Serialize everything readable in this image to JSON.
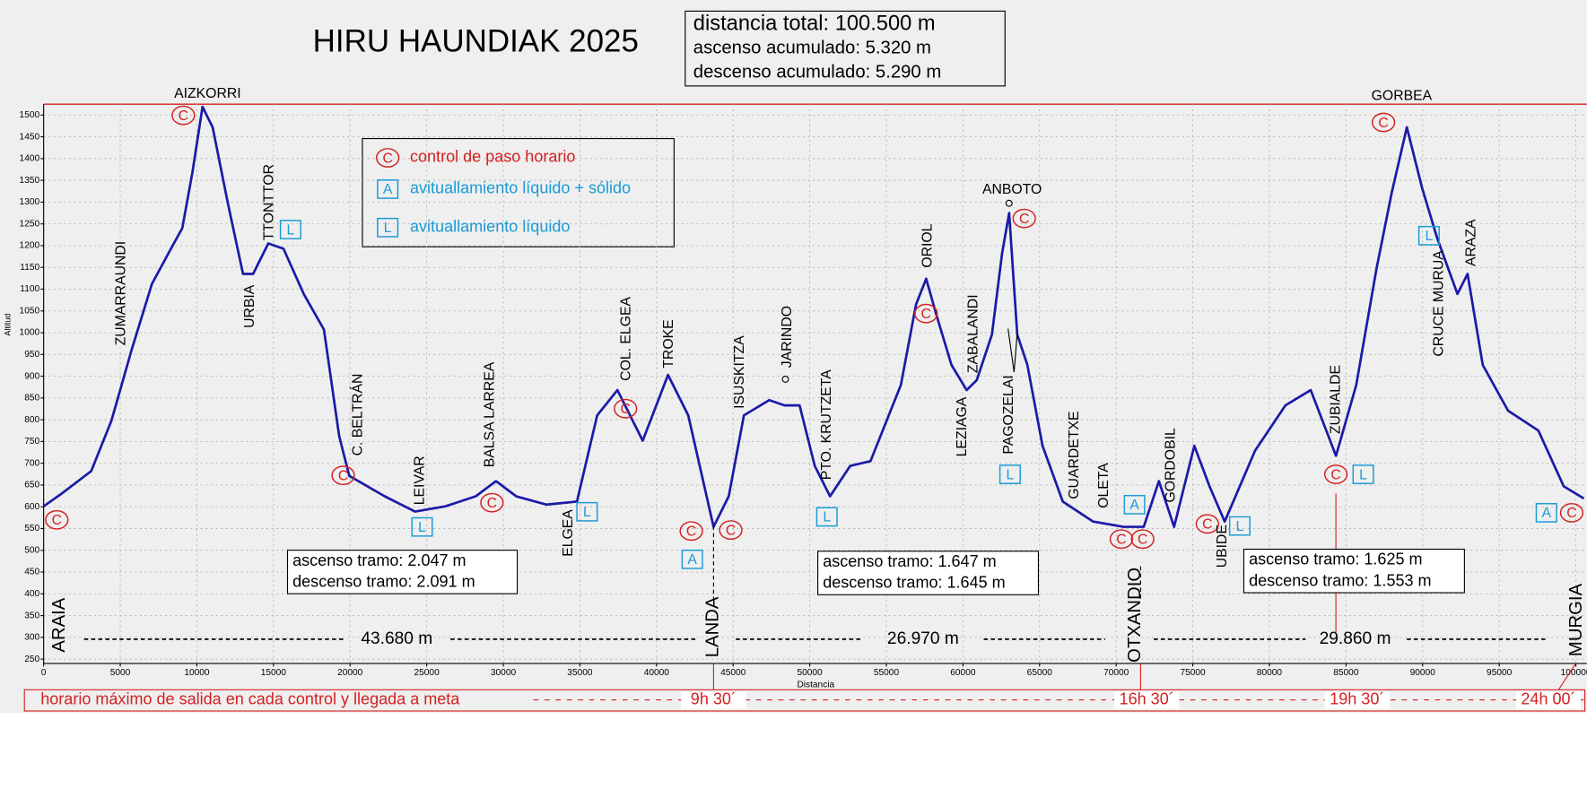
{
  "chart_data": {
    "type": "line",
    "title": "HIRU HAUNDIAK 2025",
    "xlabel": "Distancia",
    "ylabel": "Altitud",
    "x": [
      0,
      1123,
      3104,
      4425,
      5746,
      7067,
      8388,
      9049,
      9709,
      10370,
      11030,
      12021,
      13012,
      13672,
      14663,
      15654,
      16975,
      18296,
      19287,
      19947,
      22259,
      24240,
      26222,
      28203,
      29524,
      30845,
      32827,
      34808,
      36129,
      37450,
      39102,
      40753,
      42074,
      43725,
      44716,
      45707,
      47358,
      48349,
      49339,
      50330,
      51321,
      52642,
      53963,
      55945,
      56935,
      57596,
      58256,
      59247,
      60238,
      60898,
      61889,
      62550,
      63012,
      63540,
      64201,
      65192,
      66513,
      68494,
      70476,
      71797,
      72787,
      73778,
      75099,
      76090,
      77081,
      79062,
      81044,
      82695,
      84346,
      85667,
      86988,
      87979,
      88970,
      89960,
      90951,
      92272,
      92933,
      93923,
      95575,
      97556,
      99207,
      100528
    ],
    "values": [
      601,
      629,
      682,
      798,
      961,
      1112,
      1198,
      1240,
      1368,
      1519,
      1472,
      1298,
      1135,
      1135,
      1205,
      1193,
      1089,
      1007,
      763,
      671,
      624,
      589,
      601,
      624,
      659,
      624,
      605,
      612,
      810,
      868,
      752,
      903,
      810,
      554,
      624,
      810,
      845,
      833,
      833,
      694,
      624,
      694,
      705,
      880,
      1065,
      1124,
      1042,
      926,
      868,
      891,
      996,
      1182,
      1275,
      996,
      926,
      740,
      612,
      566,
      554,
      554,
      659,
      554,
      740,
      647,
      566,
      729,
      833,
      868,
      717,
      880,
      1147,
      1321,
      1472,
      1333,
      1217,
      1089,
      1135,
      926,
      821,
      775,
      647,
      619
    ],
    "color": "#1a1aa8",
    "xlim": [
      0,
      100720
    ],
    "ylim": [
      240,
      1525
    ],
    "xticks": [
      0,
      5000,
      10000,
      15000,
      20000,
      25000,
      30000,
      35000,
      40000,
      45000,
      50000,
      55000,
      60000,
      65000,
      70000,
      75000,
      80000,
      85000,
      90000,
      95000,
      100000
    ],
    "yticks": [
      250,
      300,
      350,
      400,
      450,
      500,
      550,
      600,
      650,
      700,
      750,
      800,
      850,
      900,
      950,
      1000,
      1050,
      1100,
      1150,
      1200,
      1250,
      1300,
      1350,
      1400,
      1450,
      1500
    ],
    "grid": true,
    "summary": [
      "distancia total: 100.500 m",
      "ascenso acumulado: 5.320 m",
      "descenso acumulado: 5.290 m"
    ],
    "legend": [
      {
        "symbol": "C",
        "text": "control de paso horario"
      },
      {
        "symbol": "A",
        "text": "avituallamiento líquido + sólido"
      },
      {
        "symbol": "L",
        "text": "avituallamiento líquido"
      }
    ],
    "peaks": [
      "AIZKORRI",
      "GORBEA",
      "ANBOTO"
    ],
    "places": [
      "ZUMARRAUNDI",
      "TTONTTOR",
      "URBIA",
      "C. BELTRÁN",
      "LEIVAR",
      "BALSA LARREA",
      "ELGEA",
      "COL. ELGEA",
      "TROKE",
      "ISUSKITZA",
      "JARINDO",
      "PTO. KRUTZETA",
      "ORIOL",
      "ZABALANDI",
      "LEZIAGA",
      "PAGOZELAI",
      "GUARDETXE",
      "OLETA",
      "GORDOBIL",
      "UBIDE",
      "ZUBIALDE",
      "CRUCE MURUA",
      "ARAZA"
    ],
    "towns": [
      "ARAIA",
      "LANDA",
      "OTXANDIO",
      "MURGIA"
    ],
    "segment_distances": [
      "43.680 m",
      "26.970 m",
      "29.860 m"
    ],
    "tramos": [
      [
        "ascenso tramo: 2.047 m",
        "descenso tramo: 2.091 m"
      ],
      [
        "ascenso tramo: 1.647 m",
        "descenso tramo: 1.645 m"
      ],
      [
        "ascenso tramo: 1.625 m",
        "descenso tramo: 1.553 m"
      ]
    ],
    "markers": [
      "C",
      "C",
      "C",
      "C",
      "C",
      "C",
      "C",
      "C",
      "C",
      "C",
      "C",
      "C",
      "C",
      "C",
      "C",
      "A",
      "A",
      "A",
      "L",
      "L",
      "L",
      "L",
      "L",
      "L",
      "L",
      "L"
    ],
    "schedule": {
      "label": "horario máximo de salida en cada control y llegada a meta",
      "times": [
        "9h 30´",
        "16h 30´",
        "19h 30´",
        "24h 00´"
      ]
    }
  }
}
